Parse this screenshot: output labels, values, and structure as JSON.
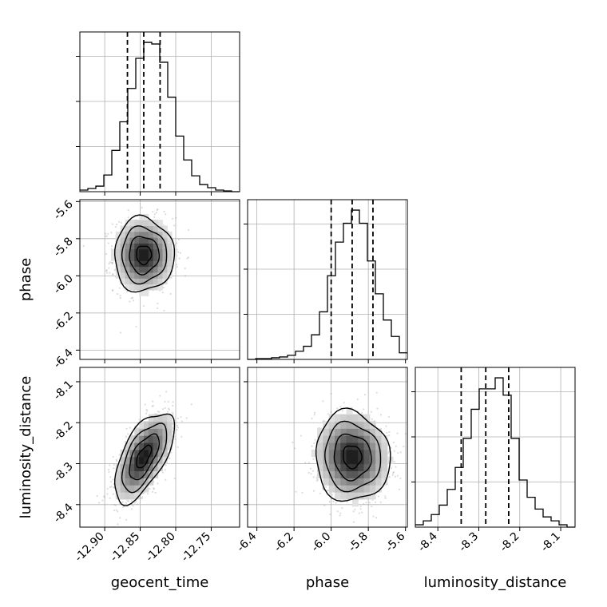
{
  "chart_data": {
    "type": "corner",
    "parameters": [
      "geocent_time",
      "phase",
      "luminosity_distance"
    ],
    "ranges": {
      "geocent_time": [
        -12.935,
        -12.71
      ],
      "phase": [
        -6.45,
        -5.59
      ],
      "luminosity_distance": [
        -8.455,
        -8.065
      ]
    },
    "ticks": {
      "geocent_time": [
        "-12.90",
        "-12.85",
        "-12.80",
        "-12.75"
      ],
      "phase": [
        "-6.4",
        "-6.2",
        "-6.0",
        "-5.8",
        "-5.6"
      ],
      "luminosity_distance": [
        "-8.4",
        "-8.3",
        "-8.2",
        "-8.1"
      ]
    },
    "grid": true,
    "histograms": {
      "geocent_time": {
        "bin_edges": [
          -12.935,
          -12.92375,
          -12.9125,
          -12.90125,
          -12.89,
          -12.87875,
          -12.8675,
          -12.85625,
          -12.845,
          -12.83375,
          -12.8225,
          -12.81125,
          -12.8,
          -12.78875,
          -12.7775,
          -12.76625,
          -12.755,
          -12.74375,
          -12.7325,
          -12.72125,
          -12.71
        ],
        "counts": [
          2,
          4,
          7,
          21,
          52,
          88,
          130,
          168,
          188,
          186,
          163,
          119,
          70,
          40,
          20,
          9,
          5,
          2,
          1,
          0
        ],
        "quantiles": [
          -12.868,
          -12.845,
          -12.822
        ]
      },
      "phase": {
        "bin_edges": [
          -6.45,
          -6.407,
          -6.364,
          -6.321,
          -6.278,
          -6.235,
          -6.192,
          -6.149,
          -6.106,
          -6.063,
          -6.02,
          -5.977,
          -5.934,
          -5.891,
          -5.848,
          -5.805,
          -5.762,
          -5.719,
          -5.676,
          -5.633,
          -5.59
        ],
        "counts": [
          0,
          1,
          1,
          2,
          3,
          5,
          10,
          16,
          30,
          58,
          102,
          143,
          166,
          182,
          166,
          120,
          80,
          48,
          28,
          8
        ],
        "quantiles": [
          -6.0,
          -5.887,
          -5.775
        ]
      },
      "luminosity_distance": {
        "bin_edges": [
          -8.455,
          -8.4355,
          -8.416,
          -8.3965,
          -8.377,
          -8.3575,
          -8.338,
          -8.3185,
          -8.299,
          -8.2795,
          -8.26,
          -8.2405,
          -8.221,
          -8.2015,
          -8.182,
          -8.1625,
          -8.143,
          -8.1235,
          -8.104,
          -8.0845,
          -8.065
        ],
        "counts": [
          3,
          8,
          16,
          28,
          48,
          76,
          113,
          150,
          176,
          176,
          190,
          168,
          113,
          60,
          38,
          23,
          13,
          8,
          3,
          0
        ],
        "quantiles": [
          -8.343,
          -8.283,
          -8.227
        ]
      }
    },
    "scatter_2d": [
      {
        "x": "geocent_time",
        "y": "phase",
        "mean": [
          -12.845,
          -5.887
        ],
        "std": [
          0.021,
          0.1
        ],
        "corr": 0.0
      },
      {
        "x": "geocent_time",
        "y": "luminosity_distance",
        "mean": [
          -12.845,
          -8.283
        ],
        "std": [
          0.021,
          0.055
        ],
        "corr": 0.62
      },
      {
        "x": "phase",
        "y": "luminosity_distance",
        "mean": [
          -5.887,
          -8.283
        ],
        "std": [
          0.1,
          0.055
        ],
        "corr": -0.05
      }
    ],
    "contour_levels_sigma": [
      0.5,
      1.0,
      1.5,
      2.0
    ]
  }
}
